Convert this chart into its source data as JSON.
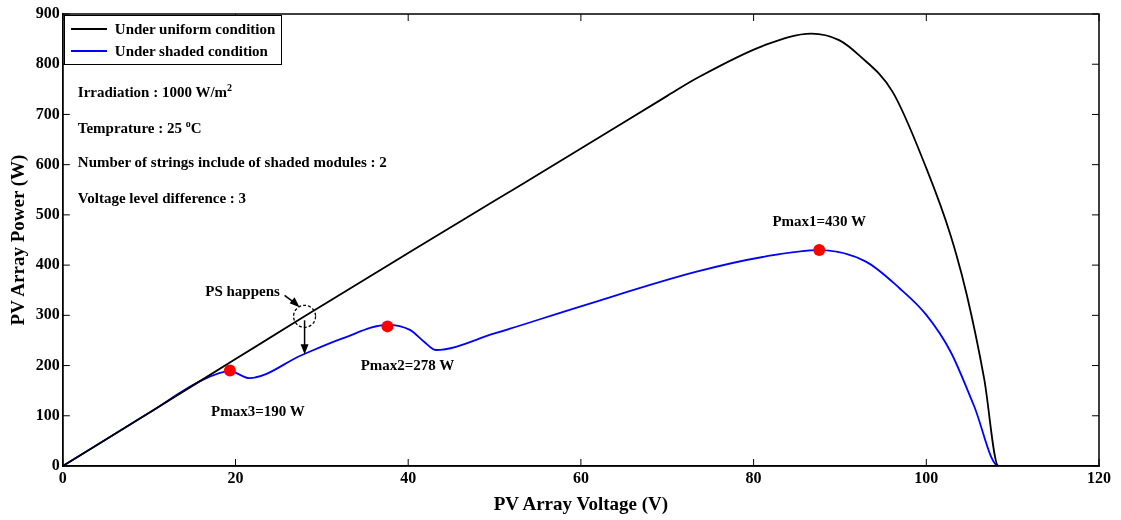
{
  "chart_data": {
    "type": "line",
    "xlabel": "PV Array Voltage (V)",
    "ylabel": "PV Array Power (W)",
    "xlim": [
      0,
      120
    ],
    "xticks": [
      0,
      20,
      40,
      60,
      80,
      100,
      120
    ],
    "ylim": [
      0,
      900
    ],
    "yticks": [
      0,
      100,
      200,
      300,
      400,
      500,
      600,
      700,
      800,
      900
    ],
    "grid": false,
    "legend": "top left",
    "marker": "none",
    "line_style": "solid",
    "series": [
      {
        "name": "Under uniform condition",
        "color": "#000000",
        "x": [
          0,
          10,
          20,
          28,
          40,
          50,
          60,
          70,
          73.4,
          81.3,
          86.7,
          89.9,
          92.2,
          96.1,
          100,
          102.8,
          104.7,
          106.7,
          108.35,
          120
        ],
        "values": [
          0,
          106,
          213,
          298,
          424,
          528,
          632,
          737,
          772,
          838,
          861,
          848,
          818,
          745,
          593,
          460,
          340,
          174,
          0,
          0
        ]
      },
      {
        "name": "Under shaded condition",
        "color": "#0000ff",
        "x": [
          0,
          10,
          16.15,
          19.35,
          21.6,
          27.7,
          32.4,
          37.6,
          40.2,
          41.8,
          43.2,
          50,
          60,
          73.4,
          81.3,
          87.6,
          93,
          96.9,
          100,
          102.8,
          105.5,
          108.35,
          120
        ],
        "values": [
          0,
          106,
          171,
          189,
          175,
          221,
          254,
          281,
          271,
          248,
          231,
          264,
          318,
          387,
          417,
          430,
          407,
          354,
          301,
          228,
          121,
          0,
          0
        ]
      },
      {
        "type": "scatter",
        "color": "#ff0000",
        "marker": "circle",
        "x": [
          19.35,
          37.6,
          87.6
        ],
        "values": [
          190,
          278,
          430
        ]
      }
    ],
    "annotations": [
      "Irradiation : 1000 W/m$^{2}$",
      "Temprature : 25 $^{o}$C",
      "Number of strings include of shaded modules : 2",
      "Voltage level difference : 3",
      {
        "text": "Pmax1=430 W",
        "x": 87.6,
        "y": 430
      },
      {
        "text": "Pmax2=278 W",
        "x": 37.6,
        "y": 278
      },
      {
        "text": "Pmax3=190 W",
        "x": 19.35,
        "y": 190
      },
      {
        "text": "PS happens",
        "x": 28,
        "y": 298
      }
    ]
  }
}
